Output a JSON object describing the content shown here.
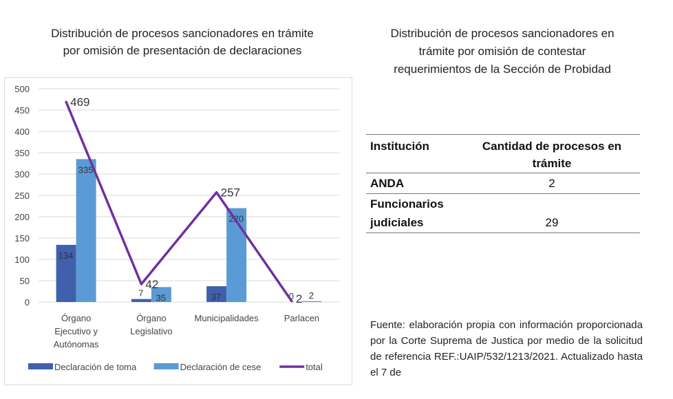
{
  "left_chart_title": "Distribución de procesos sancionadores en trámite\npor omisión de presentación de declaraciones",
  "chart_data": {
    "type": "bar",
    "categories": [
      [
        "Órgano",
        "Ejecutivo y",
        "Autónomas"
      ],
      [
        "Órgano",
        "Legislativo"
      ],
      [
        "Municipalidades"
      ],
      [
        "Parlacen"
      ]
    ],
    "series": [
      {
        "name": "Declaración de toma",
        "kind": "bar",
        "color": "#4060ad",
        "values": [
          134,
          7,
          37,
          0
        ]
      },
      {
        "name": "Declaración de cese",
        "kind": "bar",
        "color": "#5b9bd5",
        "values": [
          335,
          35,
          220,
          2
        ]
      },
      {
        "name": "total",
        "kind": "line",
        "color": "#7030a0",
        "values": [
          469,
          42,
          257,
          2
        ]
      }
    ],
    "ylim": [
      0,
      500
    ],
    "yticks": [
      0,
      50,
      100,
      150,
      200,
      250,
      300,
      350,
      400,
      450,
      500
    ],
    "grid": true,
    "legend": "bottom"
  },
  "right_title": "Distribución de procesos sancionadores en\ntrámite por omisión de contestar\nrequerimientos de la Sección de Probidad",
  "table": {
    "headers": [
      "Institución",
      "Cantidad de procesos en trámite"
    ],
    "rows": [
      [
        "ANDA",
        "2"
      ],
      [
        "Funcionarios judiciales",
        "29"
      ]
    ]
  },
  "source_text": "Fuente: elaboración propia con información proporcionada por la Corte Suprema de Justica por medio de la solicitud de referencia REF.:UAIP/532/1213/2021. Actualizado hasta el 7 de"
}
